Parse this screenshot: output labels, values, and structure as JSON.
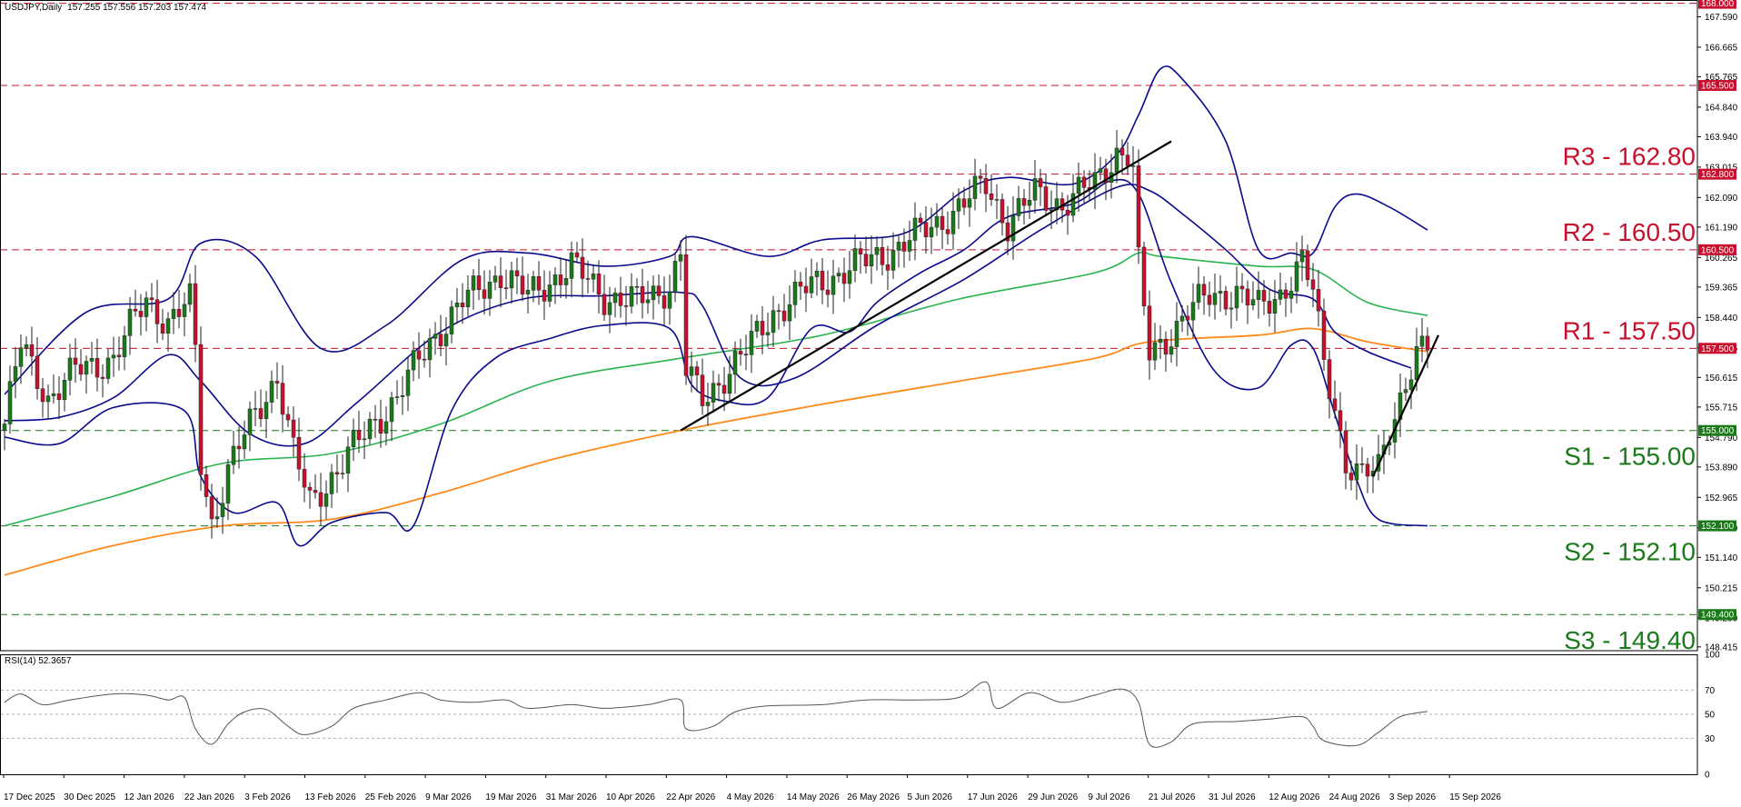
{
  "header": {
    "symbol": "USDJPY,Daily",
    "ohlc": "157.255 157.556 157.203 157.474"
  },
  "rsi_header": "RSI(14) 52.3657",
  "colors": {
    "bb": "#0a0a8c",
    "ma_green": "#2ab34f",
    "ma_orange": "#ff8a1c",
    "resistance_line": "#c8102e",
    "support_line": "#1a7a1a",
    "candle_up": "#1a7a1a",
    "candle_down": "#c8102e",
    "resistance_text": "#c8102e",
    "support_text": "#1a7a1a",
    "rsi_line": "#555555"
  },
  "levels": [
    {
      "id": "r3",
      "label": "R3 - 162.80",
      "price": 162.8,
      "tag": "162.800",
      "kind": "resistance"
    },
    {
      "id": "r2",
      "label": "R2 - 160.50",
      "price": 160.5,
      "tag": "160.500",
      "kind": "resistance"
    },
    {
      "id": "r1",
      "label": "R1 - 157.50",
      "price": 157.5,
      "tag": "157.500",
      "kind": "resistance"
    },
    {
      "id": "s1",
      "label": "S1 - 155.00",
      "price": 155.0,
      "tag": "155.000",
      "kind": "support"
    },
    {
      "id": "s2",
      "label": "S2 - 152.10",
      "price": 152.1,
      "tag": "152.100",
      "kind": "support"
    },
    {
      "id": "s3",
      "label": "S3 - 149.40",
      "price": 149.4,
      "tag": "149.400",
      "kind": "support"
    }
  ],
  "extra_levels": [
    {
      "price": 168.0,
      "tag": "168.000"
    },
    {
      "price": 165.5,
      "tag": "165.500"
    }
  ],
  "chart_data": {
    "type": "candlestick",
    "y_ticks": [
      "167.590",
      "166.665",
      "165.765",
      "164.840",
      "163.940",
      "163.015",
      "162.090",
      "161.190",
      "160.265",
      "159.365",
      "158.440",
      "157.515",
      "156.615",
      "155.715",
      "154.790",
      "153.890",
      "152.965",
      "152.040",
      "151.140",
      "150.215",
      "149.290",
      "148.415"
    ],
    "ylim": [
      148.3,
      168.1
    ],
    "rsi_ticks": [
      "100",
      "70",
      "50",
      "30",
      "0"
    ],
    "rsi_levels": [
      70,
      50,
      30
    ],
    "x_labels": [
      "17 Dec 2025",
      "30 Dec 2025",
      "12 Jan 2026",
      "22 Jan 2026",
      "3 Feb 2026",
      "13 Feb 2026",
      "25 Feb 2026",
      "9 Mar 2026",
      "19 Mar 2026",
      "31 Mar 2026",
      "10 Apr 2026",
      "22 Apr 2026",
      "4 May 2026",
      "14 May 2026",
      "26 May 2026",
      "5 Jun 2026",
      "17 Jun 2026",
      "29 Jun 2026",
      "9 Jul 2026",
      "21 Jul 2026",
      "31 Jul 2026",
      "12 Aug 2026",
      "24 Aug 2026",
      "3 Sep 2026",
      "15 Sep 2026"
    ],
    "anchors": [
      {
        "i": 0,
        "p": 155.2
      },
      {
        "i": 3,
        "p": 157.6
      },
      {
        "i": 8,
        "p": 156.0
      },
      {
        "i": 13,
        "p": 156.8
      },
      {
        "i": 20,
        "p": 157.2
      },
      {
        "i": 26,
        "p": 159.0
      },
      {
        "i": 30,
        "p": 158.3
      },
      {
        "i": 34,
        "p": 158.9
      },
      {
        "i": 35,
        "p": 157.4
      },
      {
        "i": 36,
        "p": 154.0
      },
      {
        "i": 38,
        "p": 152.2
      },
      {
        "i": 41,
        "p": 153.8
      },
      {
        "i": 46,
        "p": 155.5
      },
      {
        "i": 50,
        "p": 156.7
      },
      {
        "i": 53,
        "p": 154.3
      },
      {
        "i": 56,
        "p": 152.8
      },
      {
        "i": 61,
        "p": 153.8
      },
      {
        "i": 67,
        "p": 155.1
      },
      {
        "i": 72,
        "p": 156.0
      },
      {
        "i": 78,
        "p": 157.7
      },
      {
        "i": 84,
        "p": 158.9
      },
      {
        "i": 91,
        "p": 159.8
      },
      {
        "i": 96,
        "p": 159.1
      },
      {
        "i": 104,
        "p": 160.0
      },
      {
        "i": 110,
        "p": 159.1
      },
      {
        "i": 116,
        "p": 158.9
      },
      {
        "i": 122,
        "p": 159.4
      },
      {
        "i": 124,
        "p": 160.4
      },
      {
        "i": 125,
        "p": 156.8
      },
      {
        "i": 128,
        "p": 155.9
      },
      {
        "i": 132,
        "p": 156.7
      },
      {
        "i": 136,
        "p": 157.4
      },
      {
        "i": 141,
        "p": 158.6
      },
      {
        "i": 148,
        "p": 159.4
      },
      {
        "i": 156,
        "p": 160.0
      },
      {
        "i": 163,
        "p": 160.5
      },
      {
        "i": 170,
        "p": 161.2
      },
      {
        "i": 176,
        "p": 161.9
      },
      {
        "i": 180,
        "p": 162.5
      },
      {
        "i": 184,
        "p": 161.3
      },
      {
        "i": 189,
        "p": 162.2
      },
      {
        "i": 194,
        "p": 161.9
      },
      {
        "i": 200,
        "p": 162.5
      },
      {
        "i": 204,
        "p": 163.5
      },
      {
        "i": 206,
        "p": 163.4
      },
      {
        "i": 207,
        "p": 162.9
      },
      {
        "i": 208,
        "p": 160.0
      },
      {
        "i": 210,
        "p": 157.3
      },
      {
        "i": 213,
        "p": 157.8
      },
      {
        "i": 217,
        "p": 158.6
      },
      {
        "i": 221,
        "p": 159.1
      },
      {
        "i": 226,
        "p": 159.2
      },
      {
        "i": 230,
        "p": 158.7
      },
      {
        "i": 234,
        "p": 159.2
      },
      {
        "i": 238,
        "p": 160.1
      },
      {
        "i": 240,
        "p": 159.2
      },
      {
        "i": 242,
        "p": 157.1
      },
      {
        "i": 244,
        "p": 155.8
      },
      {
        "i": 246,
        "p": 154.0
      },
      {
        "i": 249,
        "p": 153.5
      },
      {
        "i": 252,
        "p": 153.9
      },
      {
        "i": 254,
        "p": 155.2
      },
      {
        "i": 257,
        "p": 156.4
      },
      {
        "i": 259,
        "p": 157.2
      },
      {
        "i": 261,
        "p": 157.47
      }
    ],
    "bb_upper": [
      {
        "i": 0,
        "p": 156.1
      },
      {
        "i": 15,
        "p": 158.6
      },
      {
        "i": 30,
        "p": 159.0
      },
      {
        "i": 36,
        "p": 160.7
      },
      {
        "i": 46,
        "p": 160.3
      },
      {
        "i": 58,
        "p": 157.5
      },
      {
        "i": 70,
        "p": 158.2
      },
      {
        "i": 84,
        "p": 160.2
      },
      {
        "i": 96,
        "p": 160.4
      },
      {
        "i": 110,
        "p": 160.0
      },
      {
        "i": 122,
        "p": 160.3
      },
      {
        "i": 126,
        "p": 160.9
      },
      {
        "i": 140,
        "p": 160.3
      },
      {
        "i": 150,
        "p": 160.8
      },
      {
        "i": 165,
        "p": 161.0
      },
      {
        "i": 176,
        "p": 162.3
      },
      {
        "i": 184,
        "p": 162.7
      },
      {
        "i": 196,
        "p": 162.5
      },
      {
        "i": 204,
        "p": 163.4
      },
      {
        "i": 208,
        "p": 164.6
      },
      {
        "i": 212,
        "p": 166.0
      },
      {
        "i": 216,
        "p": 165.7
      },
      {
        "i": 224,
        "p": 163.8
      },
      {
        "i": 230,
        "p": 160.5
      },
      {
        "i": 236,
        "p": 160.4
      },
      {
        "i": 240,
        "p": 160.4
      },
      {
        "i": 244,
        "p": 161.8
      },
      {
        "i": 248,
        "p": 162.2
      },
      {
        "i": 254,
        "p": 161.8
      },
      {
        "i": 261,
        "p": 161.1
      }
    ],
    "bb_lower": [
      {
        "i": 0,
        "p": 154.8
      },
      {
        "i": 10,
        "p": 154.6
      },
      {
        "i": 20,
        "p": 155.7
      },
      {
        "i": 33,
        "p": 155.6
      },
      {
        "i": 36,
        "p": 153.6
      },
      {
        "i": 42,
        "p": 152.5
      },
      {
        "i": 50,
        "p": 152.8
      },
      {
        "i": 54,
        "p": 151.5
      },
      {
        "i": 60,
        "p": 152.2
      },
      {
        "i": 70,
        "p": 152.5
      },
      {
        "i": 75,
        "p": 152.1
      },
      {
        "i": 82,
        "p": 155.6
      },
      {
        "i": 90,
        "p": 157.2
      },
      {
        "i": 100,
        "p": 157.8
      },
      {
        "i": 110,
        "p": 158.2
      },
      {
        "i": 122,
        "p": 158.1
      },
      {
        "i": 126,
        "p": 156.4
      },
      {
        "i": 132,
        "p": 155.9
      },
      {
        "i": 140,
        "p": 156.0
      },
      {
        "i": 148,
        "p": 158.1
      },
      {
        "i": 155,
        "p": 158.0
      },
      {
        "i": 160,
        "p": 158.9
      },
      {
        "i": 168,
        "p": 159.8
      },
      {
        "i": 176,
        "p": 160.5
      },
      {
        "i": 184,
        "p": 161.5
      },
      {
        "i": 196,
        "p": 161.9
      },
      {
        "i": 203,
        "p": 162.6
      },
      {
        "i": 208,
        "p": 162.2
      },
      {
        "i": 214,
        "p": 159.5
      },
      {
        "i": 222,
        "p": 156.8
      },
      {
        "i": 230,
        "p": 156.3
      },
      {
        "i": 236,
        "p": 157.6
      },
      {
        "i": 240,
        "p": 157.5
      },
      {
        "i": 244,
        "p": 155.5
      },
      {
        "i": 248,
        "p": 153.5
      },
      {
        "i": 252,
        "p": 152.3
      },
      {
        "i": 261,
        "p": 152.1
      }
    ],
    "bb_mid": [
      {
        "i": 0,
        "p": 155.3
      },
      {
        "i": 10,
        "p": 155.4
      },
      {
        "i": 20,
        "p": 156.0
      },
      {
        "i": 30,
        "p": 157.3
      },
      {
        "i": 36,
        "p": 156.5
      },
      {
        "i": 45,
        "p": 154.9
      },
      {
        "i": 55,
        "p": 154.6
      },
      {
        "i": 65,
        "p": 155.9
      },
      {
        "i": 80,
        "p": 158.0
      },
      {
        "i": 95,
        "p": 159.0
      },
      {
        "i": 110,
        "p": 159.1
      },
      {
        "i": 124,
        "p": 159.2
      },
      {
        "i": 128,
        "p": 158.8
      },
      {
        "i": 135,
        "p": 156.6
      },
      {
        "i": 145,
        "p": 156.6
      },
      {
        "i": 160,
        "p": 158.2
      },
      {
        "i": 176,
        "p": 159.6
      },
      {
        "i": 190,
        "p": 161.1
      },
      {
        "i": 204,
        "p": 162.4
      },
      {
        "i": 210,
        "p": 162.3
      },
      {
        "i": 216,
        "p": 161.6
      },
      {
        "i": 224,
        "p": 160.5
      },
      {
        "i": 232,
        "p": 159.3
      },
      {
        "i": 240,
        "p": 159.0
      },
      {
        "i": 244,
        "p": 158.0
      },
      {
        "i": 250,
        "p": 157.4
      },
      {
        "i": 258,
        "p": 156.9
      }
    ],
    "ma_green": [
      {
        "i": 0,
        "p": 152.1
      },
      {
        "i": 20,
        "p": 153.0
      },
      {
        "i": 40,
        "p": 154.0
      },
      {
        "i": 60,
        "p": 154.3
      },
      {
        "i": 80,
        "p": 155.2
      },
      {
        "i": 100,
        "p": 156.5
      },
      {
        "i": 124,
        "p": 157.2
      },
      {
        "i": 150,
        "p": 157.9
      },
      {
        "i": 175,
        "p": 159.0
      },
      {
        "i": 200,
        "p": 159.8
      },
      {
        "i": 208,
        "p": 160.4
      },
      {
        "i": 212,
        "p": 160.3
      },
      {
        "i": 230,
        "p": 160.0
      },
      {
        "i": 240,
        "p": 159.9
      },
      {
        "i": 250,
        "p": 158.9
      },
      {
        "i": 261,
        "p": 158.5
      }
    ],
    "ma_orange": [
      {
        "i": 0,
        "p": 150.6
      },
      {
        "i": 20,
        "p": 151.5
      },
      {
        "i": 40,
        "p": 152.1
      },
      {
        "i": 60,
        "p": 152.3
      },
      {
        "i": 80,
        "p": 153.1
      },
      {
        "i": 100,
        "p": 154.1
      },
      {
        "i": 124,
        "p": 155.0
      },
      {
        "i": 150,
        "p": 155.8
      },
      {
        "i": 175,
        "p": 156.5
      },
      {
        "i": 200,
        "p": 157.2
      },
      {
        "i": 210,
        "p": 157.7
      },
      {
        "i": 230,
        "p": 157.9
      },
      {
        "i": 240,
        "p": 158.1
      },
      {
        "i": 250,
        "p": 157.7
      },
      {
        "i": 261,
        "p": 157.4
      }
    ],
    "trendlines": [
      {
        "i1": 124,
        "p1": 155.0,
        "i2": 214,
        "p2": 163.8
      },
      {
        "i1": 251,
        "p1": 153.6,
        "i2": 263,
        "p2": 157.9
      }
    ],
    "rsi": [
      {
        "i": 0,
        "p": 60
      },
      {
        "i": 3,
        "p": 67
      },
      {
        "i": 7,
        "p": 58
      },
      {
        "i": 12,
        "p": 62
      },
      {
        "i": 20,
        "p": 67
      },
      {
        "i": 26,
        "p": 66
      },
      {
        "i": 30,
        "p": 62
      },
      {
        "i": 33,
        "p": 64
      },
      {
        "i": 35,
        "p": 38
      },
      {
        "i": 38,
        "p": 25
      },
      {
        "i": 41,
        "p": 42
      },
      {
        "i": 44,
        "p": 52
      },
      {
        "i": 48,
        "p": 54
      },
      {
        "i": 52,
        "p": 40
      },
      {
        "i": 55,
        "p": 33
      },
      {
        "i": 60,
        "p": 40
      },
      {
        "i": 64,
        "p": 55
      },
      {
        "i": 70,
        "p": 62
      },
      {
        "i": 76,
        "p": 68
      },
      {
        "i": 80,
        "p": 62
      },
      {
        "i": 86,
        "p": 60
      },
      {
        "i": 92,
        "p": 62
      },
      {
        "i": 96,
        "p": 55
      },
      {
        "i": 104,
        "p": 58
      },
      {
        "i": 110,
        "p": 55
      },
      {
        "i": 118,
        "p": 58
      },
      {
        "i": 124,
        "p": 62
      },
      {
        "i": 125,
        "p": 38
      },
      {
        "i": 130,
        "p": 40
      },
      {
        "i": 134,
        "p": 52
      },
      {
        "i": 140,
        "p": 57
      },
      {
        "i": 150,
        "p": 58
      },
      {
        "i": 158,
        "p": 62
      },
      {
        "i": 168,
        "p": 62
      },
      {
        "i": 175,
        "p": 64
      },
      {
        "i": 180,
        "p": 77
      },
      {
        "i": 182,
        "p": 55
      },
      {
        "i": 188,
        "p": 68
      },
      {
        "i": 194,
        "p": 60
      },
      {
        "i": 200,
        "p": 66
      },
      {
        "i": 205,
        "p": 71
      },
      {
        "i": 208,
        "p": 60
      },
      {
        "i": 210,
        "p": 25
      },
      {
        "i": 214,
        "p": 27
      },
      {
        "i": 218,
        "p": 42
      },
      {
        "i": 226,
        "p": 44
      },
      {
        "i": 232,
        "p": 46
      },
      {
        "i": 238,
        "p": 48
      },
      {
        "i": 240,
        "p": 40
      },
      {
        "i": 242,
        "p": 28
      },
      {
        "i": 248,
        "p": 24
      },
      {
        "i": 252,
        "p": 35
      },
      {
        "i": 256,
        "p": 48
      },
      {
        "i": 261,
        "p": 52.37
      }
    ]
  }
}
